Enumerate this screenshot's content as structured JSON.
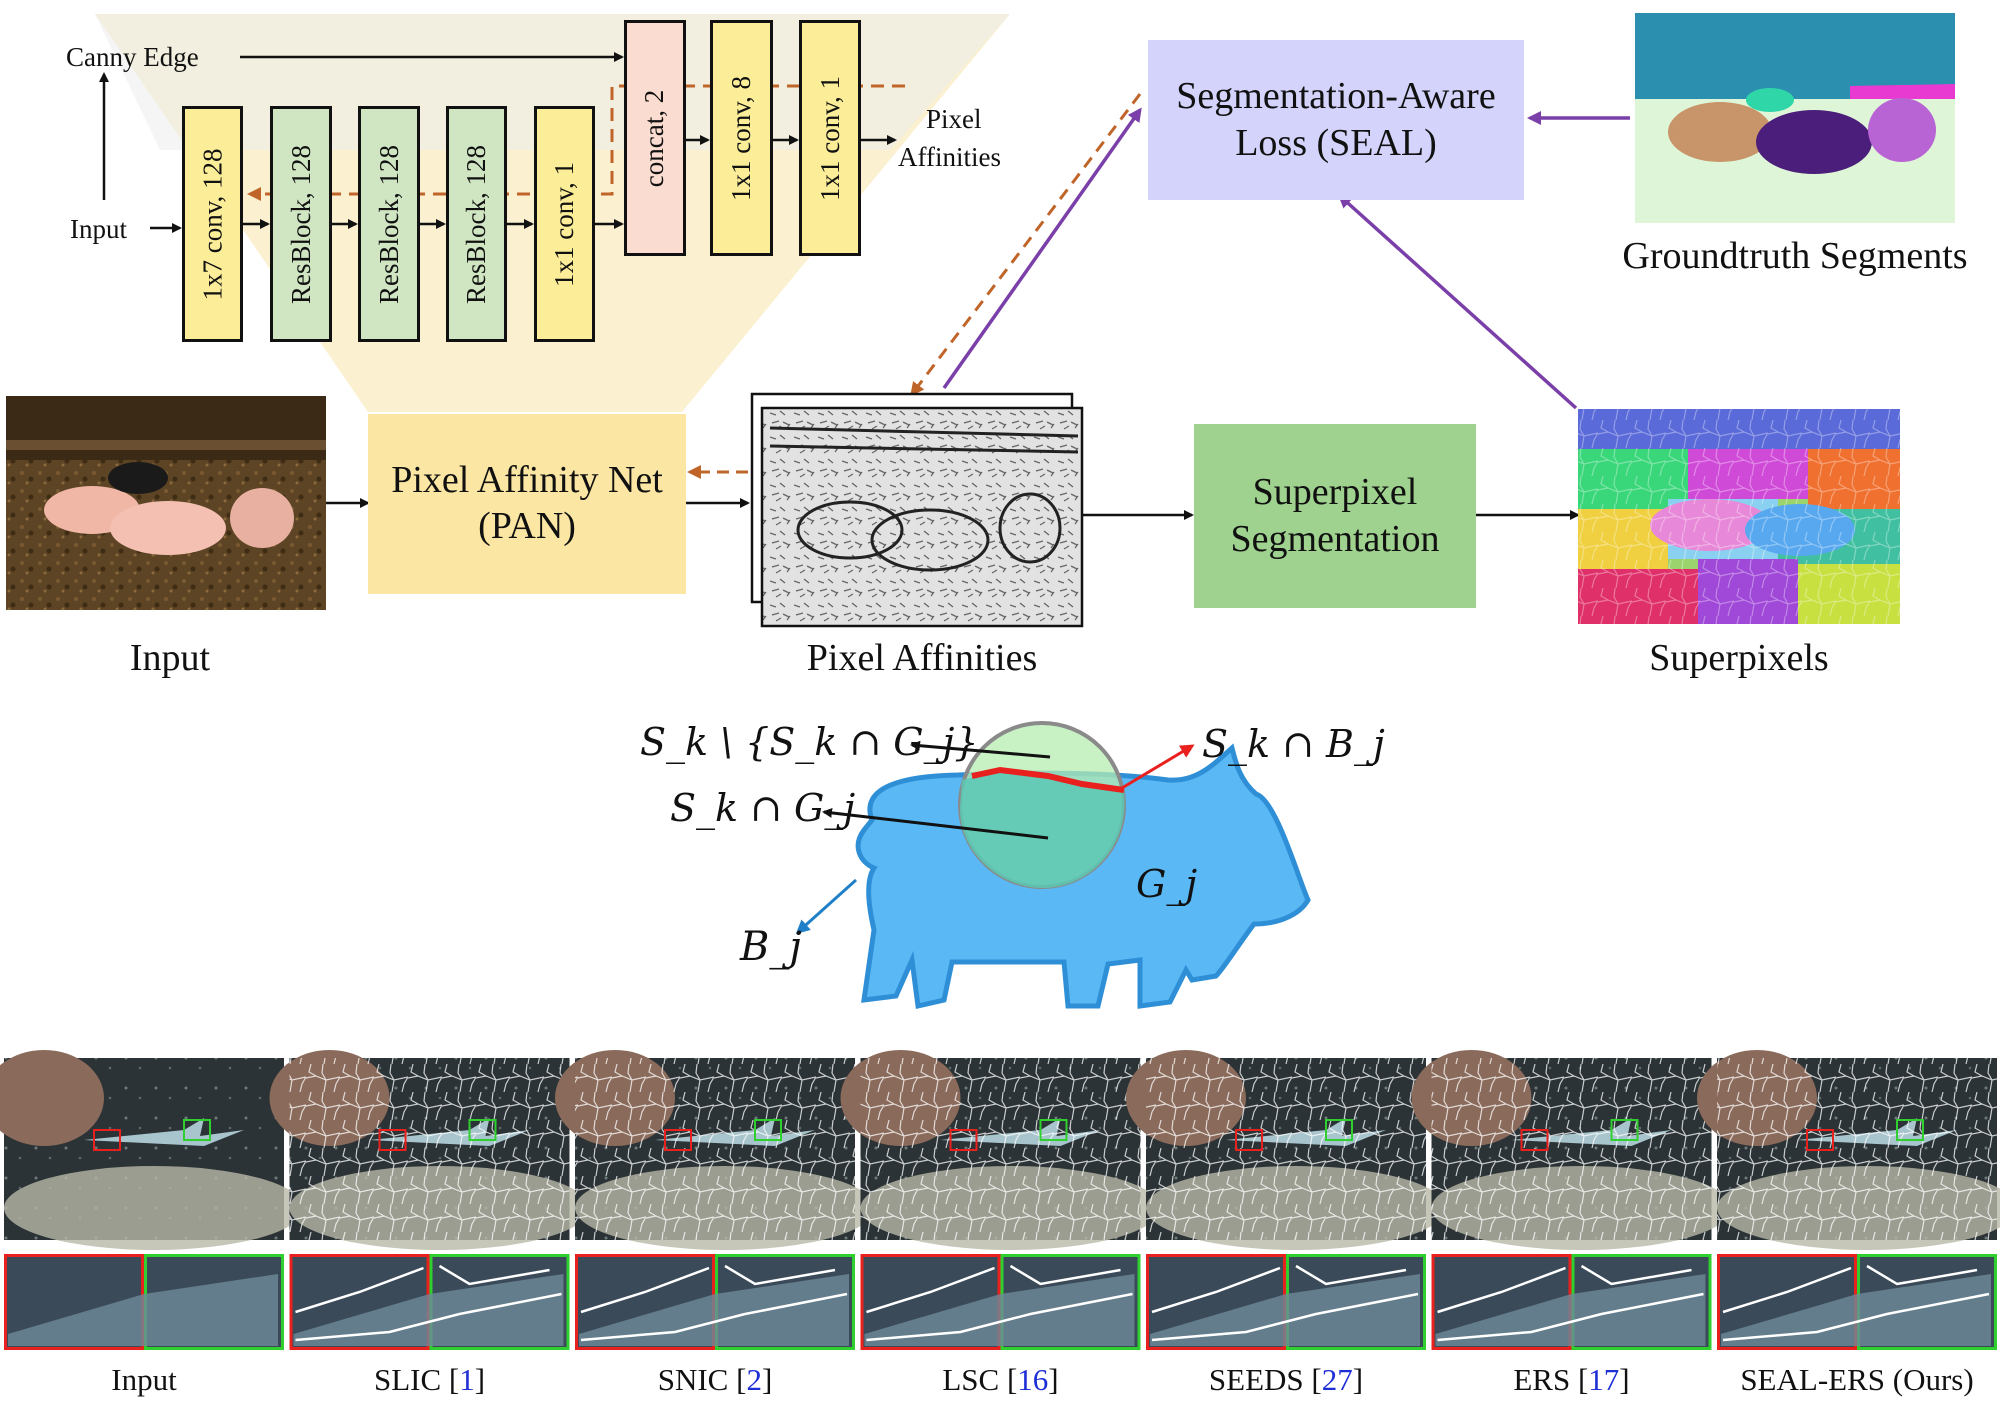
{
  "network": {
    "canny_edge": "Canny Edge",
    "input": "Input",
    "layers": [
      "1x7 conv, 128",
      "ResBlock, 128",
      "ResBlock, 128",
      "ResBlock, 128",
      "1x1 conv, 1",
      "concat, 2",
      "1x1 conv, 8",
      "1x1 conv, 1"
    ],
    "output_line1": "Pixel",
    "output_line2": "Affinities"
  },
  "pipeline": {
    "input_caption": "Input",
    "pan_line1": "Pixel Affinity Net",
    "pan_line2": "(PAN)",
    "affinities_caption": "Pixel Affinities",
    "superpixel_line1": "Superpixel",
    "superpixel_line2": "Segmentation",
    "superpixels_caption": "Superpixels",
    "seal_line1": "Segmentation-Aware",
    "seal_line2": "Loss (SEAL)",
    "groundtruth_caption": "Groundtruth Segments"
  },
  "pig_diagram": {
    "label_diff": "S_k \\ {S_k ∩ G_j}",
    "label_intersect_g": "S_k ∩ G_j",
    "label_intersect_b": "S_k ∩ B_j",
    "label_g": "G_j",
    "label_b": "B_j"
  },
  "comparison": {
    "captions": [
      {
        "name": "Input",
        "ref": ""
      },
      {
        "name": "SLIC",
        "ref": "1"
      },
      {
        "name": "SNIC",
        "ref": "2"
      },
      {
        "name": "LSC",
        "ref": "16"
      },
      {
        "name": "SEEDS",
        "ref": "27"
      },
      {
        "name": "ERS",
        "ref": "17"
      },
      {
        "name": "SEAL-ERS (Ours)",
        "ref": ""
      }
    ]
  },
  "colors": {
    "conv": "#fcee98",
    "resblock": "#d0e6c2",
    "concat": "#fbdcd0",
    "pan": "#fbe6a4",
    "superpixel_box": "#9fd28e",
    "seal_box": "#d3d3fb",
    "backprop_arrow": "#c0652a",
    "seal_arrow": "#7a3fa8",
    "pig_body": "#5ab8f4",
    "circle_fill": "#b6ecb0",
    "boundary": "#e8211e"
  }
}
